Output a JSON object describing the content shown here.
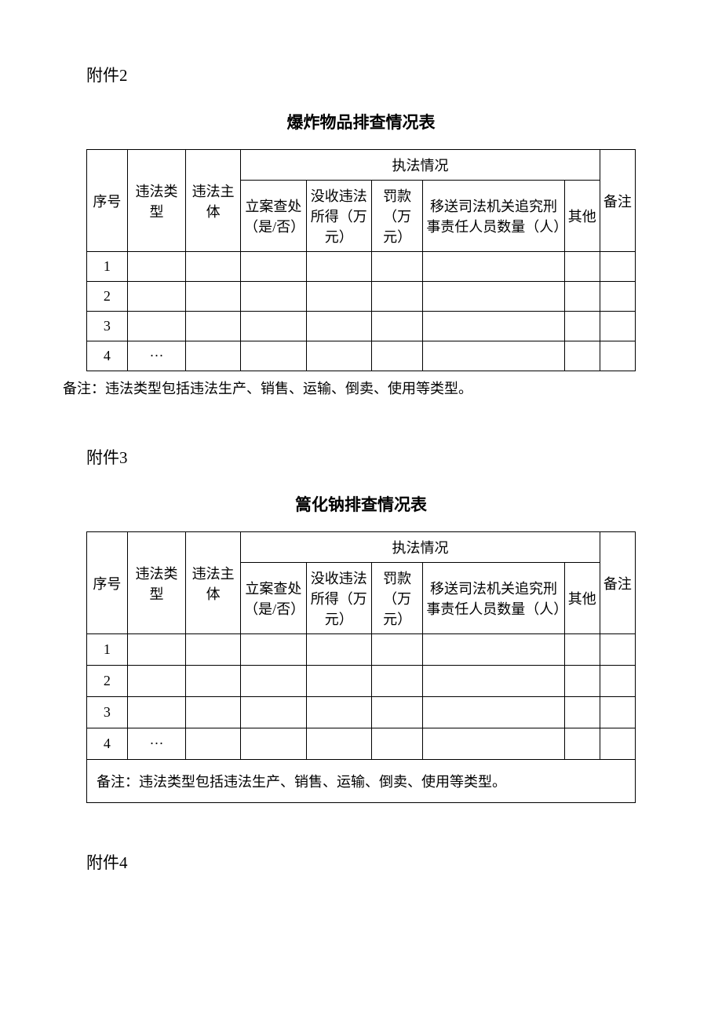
{
  "colors": {
    "text": "#000000",
    "background": "#ffffff",
    "border": "#000000"
  },
  "fonts": {
    "body_family": "SimSun, 宋体, serif",
    "label_size_pt": 21,
    "title_size_pt": 21,
    "cell_size_pt": 18,
    "footnote_size_pt": 18
  },
  "section1": {
    "attachment_label": "附件2",
    "title": "爆炸物品排查情况表",
    "columns": {
      "seq": "序号",
      "violation_type": "违法类型",
      "violation_subject": "违法主体",
      "enforcement_header": "执法情况",
      "case_filed": "立案查处（是/否）",
      "confiscate": "没收违法所得（万元）",
      "fine": "罚款（万元）",
      "transfer": "移送司法机关追究刑事责任人员数量（人）",
      "other": "其他",
      "remark": "备注"
    },
    "rows": [
      {
        "seq": "1",
        "type": "",
        "subject": "",
        "case": "",
        "confiscate": "",
        "fine": "",
        "transfer": "",
        "other": "",
        "remark": ""
      },
      {
        "seq": "2",
        "type": "",
        "subject": "",
        "case": "",
        "confiscate": "",
        "fine": "",
        "transfer": "",
        "other": "",
        "remark": ""
      },
      {
        "seq": "3",
        "type": "",
        "subject": "",
        "case": "",
        "confiscate": "",
        "fine": "",
        "transfer": "",
        "other": "",
        "remark": ""
      },
      {
        "seq": "4",
        "type": "···",
        "subject": "",
        "case": "",
        "confiscate": "",
        "fine": "",
        "transfer": "",
        "other": "",
        "remark": ""
      }
    ],
    "footnote": "备注：违法类型包括违法生产、销售、运输、倒卖、使用等类型。"
  },
  "section2": {
    "attachment_label": "附件3",
    "title": "篙化钠排查情况表",
    "columns": {
      "seq": "序号",
      "violation_type": "违法类型",
      "violation_subject": "违法主体",
      "enforcement_header": "执法情况",
      "case_filed": "立案查处（是/否）",
      "confiscate": "没收违法所得（万元）",
      "fine": "罚款（万元）",
      "transfer": "移送司法机关追究刑事责任人员数量（人）",
      "other": "其他",
      "remark": "备注"
    },
    "rows": [
      {
        "seq": "1",
        "type": "",
        "subject": "",
        "case": "",
        "confiscate": "",
        "fine": "",
        "transfer": "",
        "other": "",
        "remark": ""
      },
      {
        "seq": "2",
        "type": "",
        "subject": "",
        "case": "",
        "confiscate": "",
        "fine": "",
        "transfer": "",
        "other": "",
        "remark": ""
      },
      {
        "seq": "3",
        "type": "",
        "subject": "",
        "case": "",
        "confiscate": "",
        "fine": "",
        "transfer": "",
        "other": "",
        "remark": ""
      },
      {
        "seq": "4",
        "type": "···",
        "subject": "",
        "case": "",
        "confiscate": "",
        "fine": "",
        "transfer": "",
        "other": "",
        "remark": ""
      }
    ],
    "footnote": "备注：违法类型包括违法生产、销售、运输、倒卖、使用等类型。"
  },
  "section3": {
    "attachment_label": "附件4"
  }
}
